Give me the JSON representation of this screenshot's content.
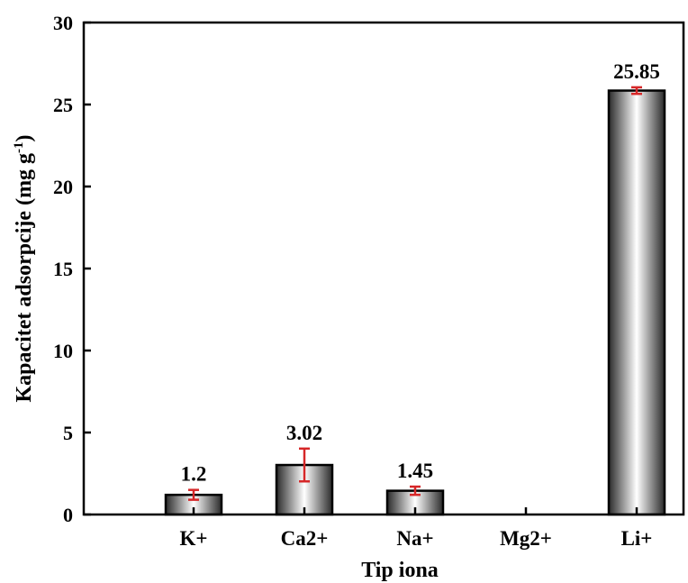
{
  "chart_data": {
    "type": "bar",
    "title": "",
    "xlabel": "Tip iona",
    "ylabel_main": "Kapacitet adsorpcije (mg g",
    "ylabel_sup": "-1",
    "ylabel_close": ")",
    "ylim": [
      0,
      30
    ],
    "yticks": [
      0,
      5,
      10,
      15,
      20,
      25,
      30
    ],
    "categories": [
      "K+",
      "Ca2+",
      "Na+",
      "Mg2+",
      "Li+"
    ],
    "values": [
      1.2,
      3.02,
      1.45,
      0,
      25.85
    ],
    "errors": [
      0.3,
      1.0,
      0.25,
      0,
      0.2
    ],
    "data_labels": [
      "1.2",
      "3.02",
      "1.45",
      "",
      "25.85"
    ],
    "grid": false,
    "legend": "none",
    "colors": {
      "bar_edge": "#000000",
      "bar_center": "#ffffff",
      "bar_side": "#3a3a3a",
      "error_bar": "#d62728"
    }
  }
}
